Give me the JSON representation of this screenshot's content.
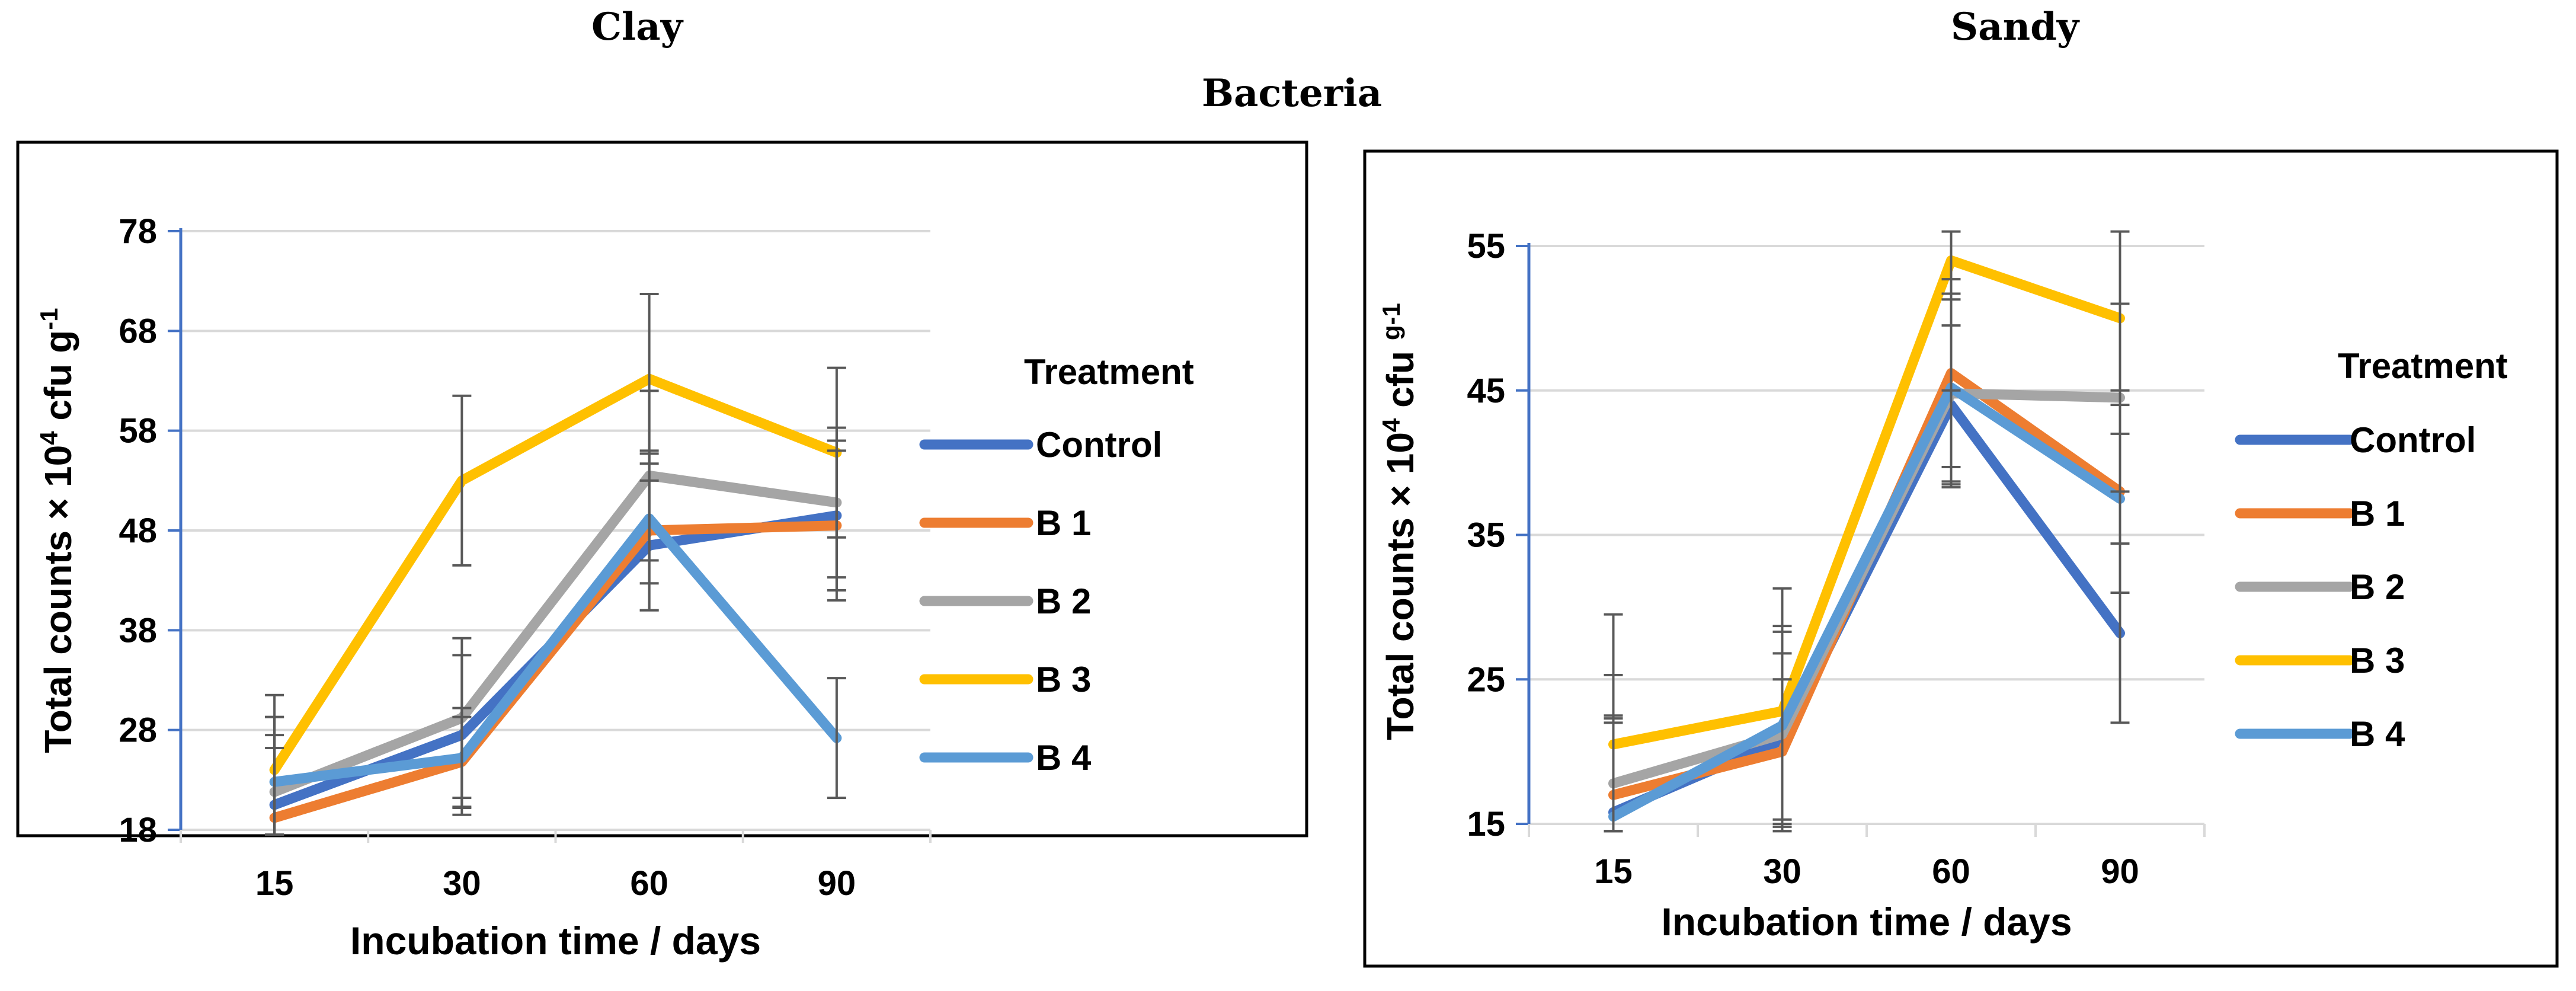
{
  "header": {
    "left_title": "Clay",
    "right_title": "Sandy",
    "center_title": "Bacteria"
  },
  "chart_data": [
    {
      "type": "line",
      "title": "Clay",
      "xlabel": "Incubation time / days",
      "ylabel_parts": [
        "Total counts  × 10",
        "4",
        " cfu g",
        "-1"
      ],
      "categories": [
        "15",
        "30",
        "60",
        "90"
      ],
      "yticks": [
        18,
        28,
        38,
        48,
        58,
        68,
        78
      ],
      "ylim": [
        18,
        78
      ],
      "grid": true,
      "legend_title": "Treatment",
      "legend_position": "right",
      "series": [
        {
          "name": "Control",
          "color": "#4472C4",
          "values": [
            20.5,
            27.5,
            46.5,
            49.5
          ],
          "errors": [
            7,
            8,
            6.5,
            7.5
          ]
        },
        {
          "name": "B 1",
          "color": "#ED7D31",
          "values": [
            19.2,
            24.8,
            48,
            48.5
          ],
          "errors": [
            7,
            4.5,
            8,
            7.5
          ]
        },
        {
          "name": "B 2",
          "color": "#A5A5A5",
          "values": [
            21.8,
            29.2,
            53.5,
            50.8
          ],
          "errors": [
            7.5,
            8,
            8.5,
            7.5
          ]
        },
        {
          "name": "B 3",
          "color": "#FFC000",
          "values": [
            24,
            53,
            63.2,
            55.8
          ],
          "errors": [
            7.5,
            8.5,
            8.5,
            8.5
          ]
        },
        {
          "name": "B 4",
          "color": "#5B9BD5",
          "values": [
            22.8,
            25.2,
            49.2,
            27.2
          ],
          "errors": [
            6.5,
            5,
            6.5,
            6
          ]
        }
      ]
    },
    {
      "type": "line",
      "title": "Sandy",
      "xlabel": "Incubation time / days",
      "ylabel_parts": [
        "Total counts  × 10",
        "4",
        " cfu ",
        "g-1"
      ],
      "categories": [
        "15",
        "30",
        "60",
        "90"
      ],
      "yticks": [
        15,
        25,
        35,
        45,
        55
      ],
      "ylim": [
        15,
        55
      ],
      "grid": true,
      "legend_title": "Treatment",
      "legend_position": "right",
      "series": [
        {
          "name": "Control",
          "color": "#4472C4",
          "values": [
            15.8,
            20.8,
            44,
            28.2
          ],
          "errors": [
            6.5,
            6,
            5.5,
            6.2
          ]
        },
        {
          "name": "B 1",
          "color": "#ED7D31",
          "values": [
            17,
            20,
            46.2,
            38
          ],
          "errors": [
            5.5,
            5,
            6.5,
            7
          ]
        },
        {
          "name": "B 2",
          "color": "#A5A5A5",
          "values": [
            17.8,
            21.2,
            44.8,
            44.5
          ],
          "errors": [
            7.5,
            7.5,
            6.5,
            6.5
          ]
        },
        {
          "name": "B 3",
          "color": "#FFC000",
          "values": [
            20.5,
            22.8,
            54,
            50
          ],
          "errors": [
            9,
            8.5,
            9,
            8
          ]
        },
        {
          "name": "B 4",
          "color": "#5B9BD5",
          "values": [
            15.5,
            21.8,
            45.2,
            37.5
          ],
          "errors": [
            6.5,
            6.5,
            6.5,
            6.5
          ]
        }
      ]
    }
  ]
}
